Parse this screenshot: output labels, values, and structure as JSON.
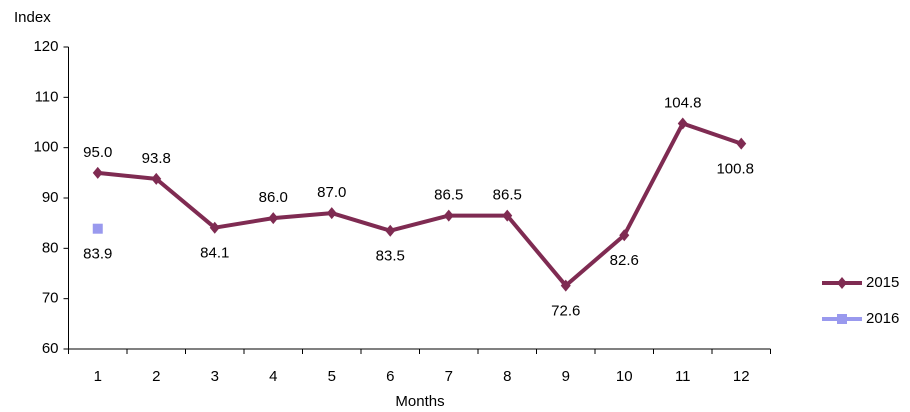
{
  "chart_data": {
    "type": "line",
    "y_label": "Index",
    "x_label": "Months",
    "categories": [
      "1",
      "2",
      "3",
      "4",
      "5",
      "6",
      "7",
      "8",
      "9",
      "10",
      "11",
      "12"
    ],
    "series": [
      {
        "name": "2015",
        "color": "#7f2b52",
        "values": [
          95.0,
          93.8,
          84.1,
          86.0,
          87.0,
          83.5,
          86.5,
          86.5,
          72.6,
          82.6,
          104.8,
          100.8
        ],
        "value_labels": [
          "95.0",
          "93.8",
          "84.1",
          "86.0",
          "87.0",
          "83.5",
          "86.5",
          "86.5",
          "72.6",
          "82.6",
          "104.8",
          "100.8"
        ]
      },
      {
        "name": "2016",
        "color": "#9999ee",
        "values": [
          83.9,
          null,
          null,
          null,
          null,
          null,
          null,
          null,
          null,
          null,
          null,
          null
        ],
        "value_labels": [
          "83.9",
          null,
          null,
          null,
          null,
          null,
          null,
          null,
          null,
          null,
          null,
          null
        ]
      }
    ],
    "ylim": [
      60,
      120
    ],
    "yticks": [
      60,
      70,
      80,
      90,
      100,
      110,
      120
    ],
    "grid": false,
    "legend": "right"
  }
}
